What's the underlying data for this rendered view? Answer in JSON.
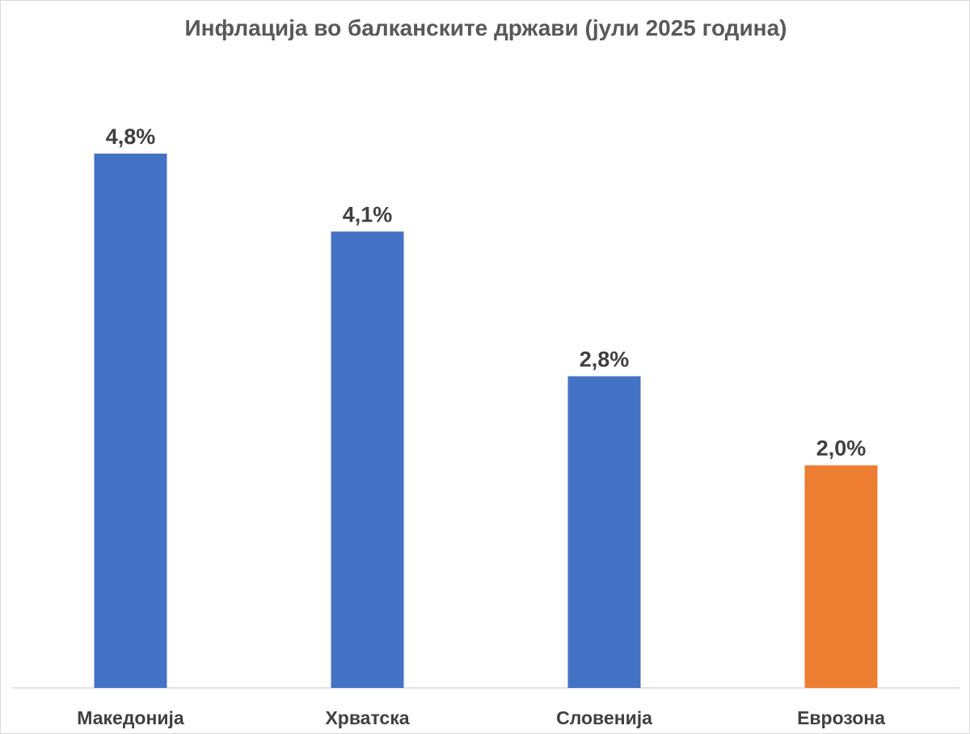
{
  "chart_data": {
    "type": "bar",
    "title": "Инфлација во балканските држави (јули 2025 година)",
    "categories": [
      "Македонија",
      "Хрватска",
      "Словенија",
      "Еврозона"
    ],
    "values": [
      4.8,
      4.1,
      2.8,
      2.0
    ],
    "data_labels": [
      "4,8%",
      "4,1%",
      "2,8%",
      "2,0%"
    ],
    "colors": [
      "#4472C4",
      "#4472C4",
      "#4472C4",
      "#ED7D31"
    ],
    "xlabel": "",
    "ylabel": "",
    "ylim": [
      0,
      6
    ],
    "grid": false,
    "legend": "none"
  }
}
